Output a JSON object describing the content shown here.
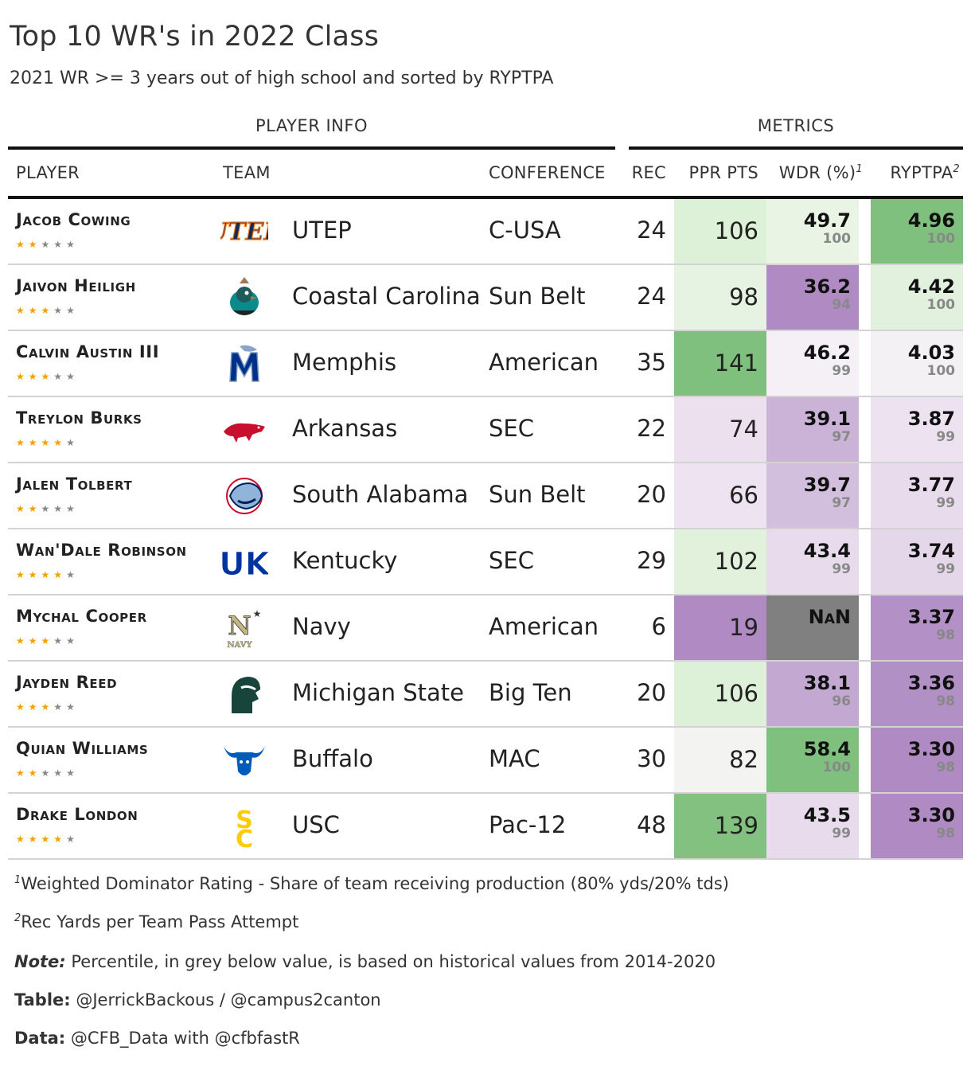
{
  "title": "Top 10 WR's in 2022 Class",
  "subtitle": "2021 WR >= 3 years out of high school and sorted by RYPTPA",
  "spanners": {
    "player_info": "PLAYER INFO",
    "metrics": "METRICS"
  },
  "columns": {
    "player": "PLAYER",
    "team": "TEAM",
    "conference": "CONFERENCE",
    "rec": "REC",
    "ppr": "PPR PTS",
    "wdr": "WDR (%)",
    "wdr_note": "1",
    "ryptpa": "RYPTPA",
    "ryptpa_note": "2"
  },
  "colors": {
    "green_strong": "#80c07e",
    "purple_strong": "#af8ac3",
    "nan_grey": "#808080",
    "star_on": "#f5a000",
    "star_off": "#888888"
  },
  "rows": [
    {
      "name": "Jacob Cowing",
      "stars": 2,
      "logo": "utep-logo",
      "team": "UTEP",
      "conference": "C-USA",
      "rec": "24",
      "ppr": "106",
      "ppr_bg": "#ddf0d8",
      "wdr": "49.7",
      "wdr_pct": "100",
      "wdr_bg": "#e9f4e5",
      "ryptpa": "4.96",
      "ryptpa_pct": "100",
      "ryptpa_bg": "#80c07e"
    },
    {
      "name": "Jaivon Heiligh",
      "stars": 3,
      "logo": "chanticleer-logo",
      "team": "Coastal Carolina",
      "conference": "Sun Belt",
      "rec": "24",
      "ppr": "98",
      "ppr_bg": "#e6f3e2",
      "wdr": "36.2",
      "wdr_pct": "94",
      "wdr_bg": "#af8ac3",
      "ryptpa": "4.42",
      "ryptpa_pct": "100",
      "ryptpa_bg": "#e2f1de"
    },
    {
      "name": "Calvin Austin III",
      "stars": 3,
      "logo": "tiger-logo",
      "team": "Memphis",
      "conference": "American",
      "rec": "35",
      "ppr": "141",
      "ppr_bg": "#80c07e",
      "wdr": "46.2",
      "wdr_pct": "99",
      "wdr_bg": "#f4f0f5",
      "ryptpa": "4.03",
      "ryptpa_pct": "100",
      "ryptpa_bg": "#f4f1f5"
    },
    {
      "name": "Treylon Burks",
      "stars": 4,
      "logo": "razorback-logo",
      "team": "Arkansas",
      "conference": "SEC",
      "rec": "22",
      "ppr": "74",
      "ppr_bg": "#ece0ef",
      "wdr": "39.1",
      "wdr_pct": "97",
      "wdr_bg": "#cbb3d8",
      "ryptpa": "3.87",
      "ryptpa_pct": "99",
      "ryptpa_bg": "#ede2f0"
    },
    {
      "name": "Jalen Tolbert",
      "stars": 2,
      "logo": "jaguar-logo",
      "team": "South Alabama",
      "conference": "Sun Belt",
      "rec": "20",
      "ppr": "66",
      "ppr_bg": "#eee3f0",
      "wdr": "39.7",
      "wdr_pct": "97",
      "wdr_bg": "#d2bedd",
      "ryptpa": "3.77",
      "ryptpa_pct": "99",
      "ryptpa_bg": "#e8dbec"
    },
    {
      "name": "Wan'Dale Robinson",
      "stars": 4,
      "logo": "uk-logo",
      "team": "Kentucky",
      "conference": "SEC",
      "rec": "29",
      "ppr": "102",
      "ppr_bg": "#e1f1dc",
      "wdr": "43.4",
      "wdr_pct": "99",
      "wdr_bg": "#e8dbec",
      "ryptpa": "3.74",
      "ryptpa_pct": "99",
      "ryptpa_bg": "#e5d7ea"
    },
    {
      "name": "Mychal Cooper",
      "stars": 3,
      "logo": "navy-logo",
      "team": "Navy",
      "conference": "American",
      "rec": "6",
      "ppr": "19",
      "ppr_bg": "#af8ac3",
      "wdr": "NaN",
      "wdr_pct": "",
      "wdr_bg": "#808080",
      "ryptpa": "3.37",
      "ryptpa_pct": "98",
      "ryptpa_bg": "#b391c6"
    },
    {
      "name": "Jayden Reed",
      "stars": 3,
      "logo": "spartan-logo",
      "team": "Michigan State",
      "conference": "Big Ten",
      "rec": "20",
      "ppr": "106",
      "ppr_bg": "#ddf0d8",
      "wdr": "38.1",
      "wdr_pct": "96",
      "wdr_bg": "#c3a8d2",
      "ryptpa": "3.36",
      "ryptpa_pct": "98",
      "ryptpa_bg": "#b190c5"
    },
    {
      "name": "Quian Williams",
      "stars": 2,
      "logo": "bull-logo",
      "team": "Buffalo",
      "conference": "MAC",
      "rec": "30",
      "ppr": "82",
      "ppr_bg": "#f3f4f2",
      "wdr": "58.4",
      "wdr_pct": "100",
      "wdr_bg": "#80c07e",
      "ryptpa": "3.30",
      "ryptpa_pct": "98",
      "ryptpa_bg": "#af8ac3"
    },
    {
      "name": "Drake London",
      "stars": 4,
      "logo": "sc-logo",
      "team": "USC",
      "conference": "Pac-12",
      "rec": "48",
      "ppr": "139",
      "ppr_bg": "#82c180",
      "wdr": "43.5",
      "wdr_pct": "99",
      "wdr_bg": "#e8dbec",
      "ryptpa": "3.30",
      "ryptpa_pct": "98",
      "ryptpa_bg": "#af8ac3"
    }
  ],
  "footnotes": {
    "fn1_mark": "1",
    "fn1": "Weighted Dominator Rating - Share of team receiving production (80% yds/20% tds)",
    "fn2_mark": "2",
    "fn2": "Rec Yards per Team Pass Attempt",
    "note_label": "Note:",
    "note": "Percentile, in grey below value, is based on historical values from 2014-2020",
    "table_label": "Table:",
    "table": "@JerrickBackous / @campus2canton",
    "data_label": "Data:",
    "data": "@CFB_Data with @cfbfastR"
  }
}
